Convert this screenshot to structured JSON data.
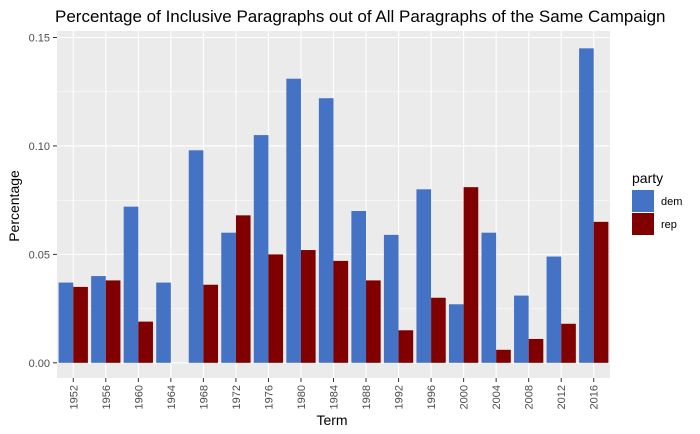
{
  "chart_data": {
    "type": "bar",
    "title": "Percentage of Inclusive Paragraphs out of All Paragraphs of the Same Campaign",
    "xlabel": "Term",
    "ylabel": "Percentage",
    "ylim": [
      -0.007,
      0.153
    ],
    "yticks": [
      0.0,
      0.05,
      0.1,
      0.15
    ],
    "ytick_labels": [
      "0.00",
      "0.05",
      "0.10",
      "0.15"
    ],
    "grid": true,
    "legend_position": "right",
    "legend_title": "party",
    "categories": [
      "1952",
      "1956",
      "1960",
      "1964",
      "1968",
      "1972",
      "1976",
      "1980",
      "1984",
      "1988",
      "1992",
      "1996",
      "2000",
      "2004",
      "2008",
      "2012",
      "2016"
    ],
    "series": [
      {
        "name": "dem",
        "color": "#4472C4",
        "values": [
          0.037,
          0.04,
          0.072,
          0.037,
          0.098,
          0.06,
          0.105,
          0.131,
          0.122,
          0.07,
          0.059,
          0.08,
          0.027,
          0.06,
          0.031,
          0.049,
          0.145
        ]
      },
      {
        "name": "rep",
        "color": "#800000",
        "values": [
          0.035,
          0.038,
          0.019,
          0.0,
          0.036,
          0.068,
          0.05,
          0.052,
          0.047,
          0.038,
          0.015,
          0.03,
          0.081,
          0.006,
          0.011,
          0.018,
          0.065
        ]
      }
    ]
  }
}
